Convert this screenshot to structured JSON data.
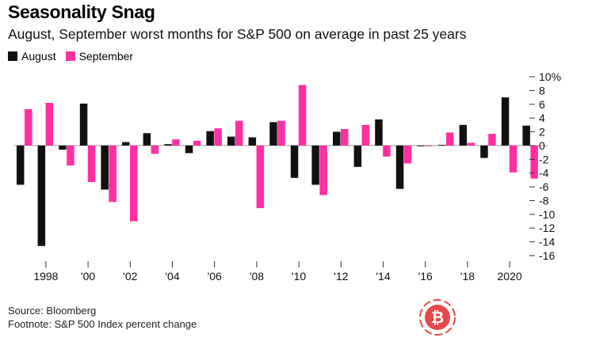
{
  "title": "Seasonality Snag",
  "subtitle": "August, September worst months for S&P 500 on average in past 25 years",
  "legend": {
    "august": "August",
    "september": "September"
  },
  "colors": {
    "august": "#111111",
    "september": "#ff2fa3"
  },
  "source": "Source: Bloomberg",
  "footnote": "Footnote: S&P 500 Index percent change",
  "chart_data": {
    "type": "bar",
    "categories": [
      "1997",
      "1998",
      "1999",
      "2000",
      "2001",
      "2002",
      "2003",
      "2004",
      "2005",
      "2006",
      "2007",
      "2008",
      "2009",
      "2010",
      "2011",
      "2012",
      "2013",
      "2014",
      "2015",
      "2016",
      "2017",
      "2018",
      "2019",
      "2020",
      "2021"
    ],
    "series": [
      {
        "name": "August",
        "values": [
          -5.7,
          -14.6,
          -0.6,
          6.1,
          -6.4,
          0.5,
          1.8,
          0.2,
          -1.1,
          2.1,
          1.3,
          1.2,
          3.4,
          -4.7,
          -5.7,
          2.0,
          -3.1,
          3.8,
          -6.3,
          -0.1,
          0.1,
          3.0,
          -1.8,
          7.0,
          2.9
        ]
      },
      {
        "name": "September",
        "values": [
          5.3,
          6.2,
          -2.9,
          -5.3,
          -8.2,
          -11.0,
          -1.2,
          0.9,
          0.7,
          2.5,
          3.6,
          -9.1,
          3.6,
          8.8,
          -7.2,
          2.4,
          3.0,
          -1.6,
          -2.6,
          -0.1,
          1.9,
          0.4,
          1.7,
          -3.9,
          -4.8
        ]
      }
    ],
    "x_tick_labels": [
      "1998",
      "'00",
      "'02",
      "'04",
      "'06",
      "'08",
      "'10",
      "'12",
      "'14",
      "'16",
      "'18",
      "2020"
    ],
    "y_ticks": [
      10,
      8,
      6,
      4,
      2,
      0,
      -2,
      -4,
      -6,
      -8,
      -10,
      -12,
      -14,
      -16
    ],
    "y_tick_labels": [
      "10%",
      "8",
      "6",
      "4",
      "2",
      "0",
      "-2",
      "-4",
      "-6",
      "-8",
      "-10",
      "-12",
      "-14",
      "-16"
    ],
    "ylim": [
      -16,
      10
    ],
    "xlabel": "",
    "ylabel": ""
  },
  "logo": {
    "icon": "bitcoin-icon",
    "glyph": "₿",
    "color": "#e8474a"
  }
}
